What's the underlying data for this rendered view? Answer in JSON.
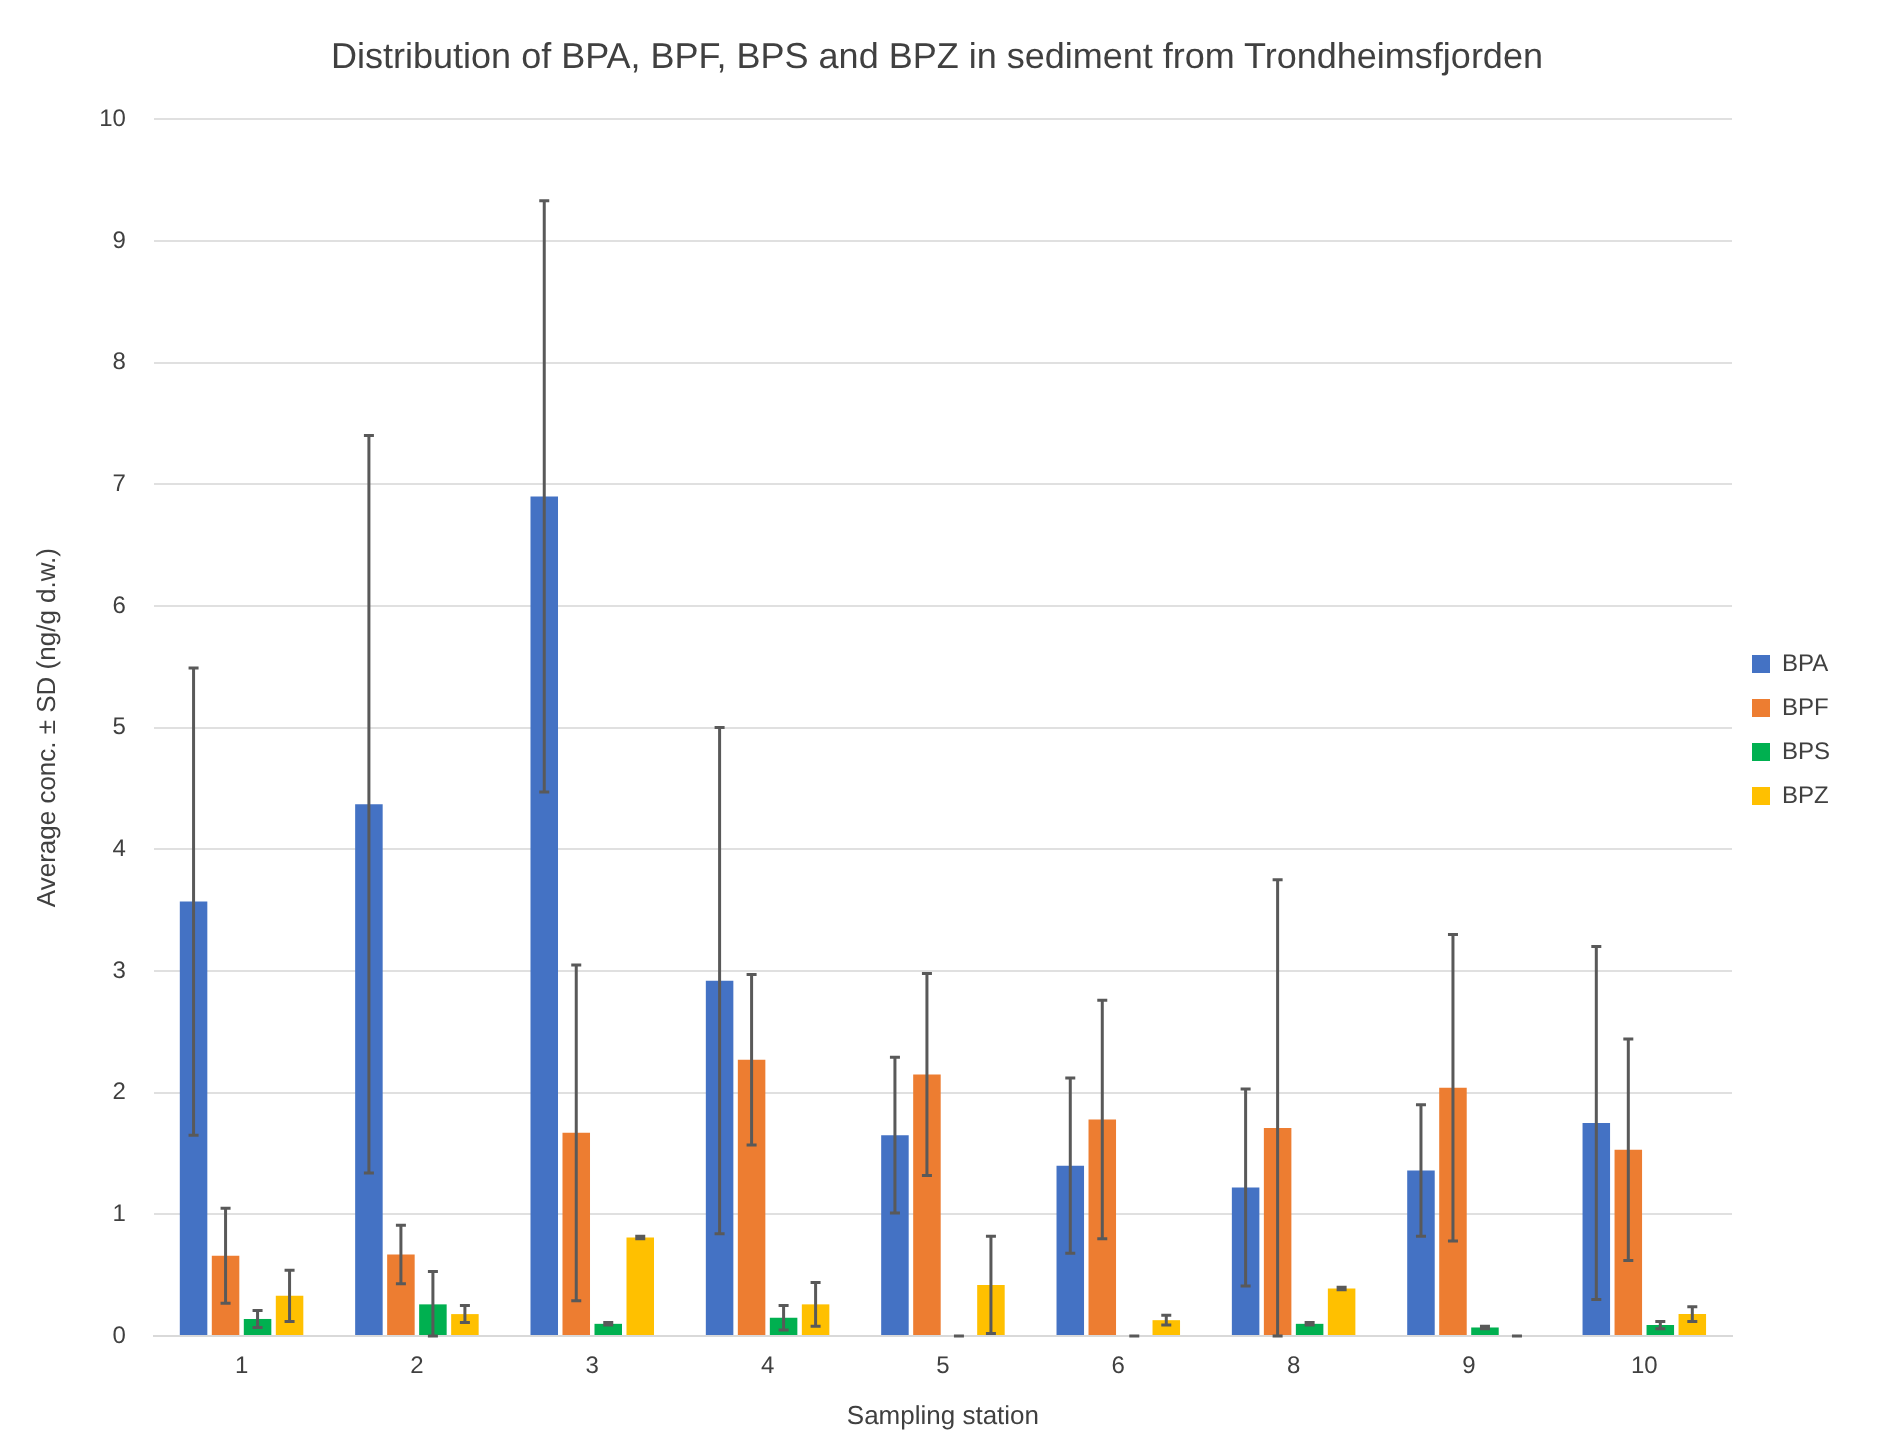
{
  "chart_data": {
    "type": "bar",
    "title": "Distribution of BPA, BPF, BPS and BPZ in sediment from Trondheimsfjorden",
    "xlabel": "Sampling station",
    "ylabel": "Average conc. ± SD (ng/g d.w.)",
    "categories": [
      "1",
      "2",
      "3",
      "4",
      "5",
      "6",
      "8",
      "9",
      "10"
    ],
    "series": [
      {
        "name": "BPA",
        "color": "#4472c4",
        "values": [
          3.57,
          4.37,
          6.9,
          2.92,
          1.65,
          1.4,
          1.22,
          1.36,
          1.75
        ],
        "errors": [
          1.92,
          3.03,
          2.43,
          2.08,
          0.64,
          0.72,
          0.81,
          0.54,
          1.45
        ]
      },
      {
        "name": "BPF",
        "color": "#ed7d31",
        "values": [
          0.66,
          0.67,
          1.67,
          2.27,
          2.15,
          1.78,
          1.71,
          2.04,
          1.53
        ],
        "errors": [
          0.39,
          0.24,
          1.38,
          0.7,
          0.83,
          0.98,
          [
            0,
            3.75
          ],
          1.26,
          0.91
        ]
      },
      {
        "name": "BPS",
        "color": "#00b050",
        "values": [
          0.14,
          0.26,
          0.1,
          0.15,
          0,
          0,
          0.1,
          0.07,
          0.09
        ],
        "errors": [
          0.07,
          [
            0,
            0.53
          ],
          0.01,
          0.1,
          0,
          0,
          0.01,
          0.01,
          0.03
        ]
      },
      {
        "name": "BPZ",
        "color": "#ffc000",
        "values": [
          0.33,
          0.18,
          0.81,
          0.26,
          0.42,
          0.13,
          0.39,
          0,
          0.18
        ],
        "errors": [
          0.21,
          0.07,
          0.01,
          0.18,
          0.4,
          0.04,
          0.01,
          0,
          0.06
        ]
      }
    ],
    "ylim": [
      0,
      10
    ],
    "yticks": [
      0,
      1,
      2,
      3,
      4,
      5,
      6,
      7,
      8,
      9,
      10
    ],
    "grid": "y",
    "legend": "right"
  }
}
